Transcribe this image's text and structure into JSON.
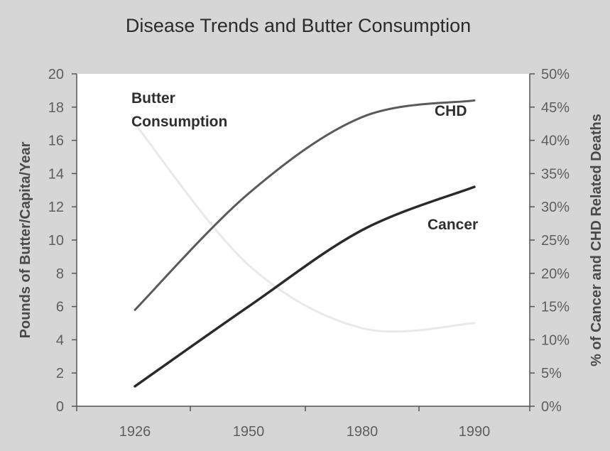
{
  "chart_data": {
    "type": "line",
    "title": "Disease Trends and Butter Consumption",
    "ylabel": "Pounds of Butter/Capita/Year",
    "y2label": "% of Cancer and CHD Related Deaths",
    "ylim": [
      0,
      20
    ],
    "y2lim": [
      0,
      50
    ],
    "yticks": [
      "0",
      "2",
      "4",
      "6",
      "8",
      "10",
      "12",
      "14",
      "16",
      "18",
      "20"
    ],
    "y2ticks": [
      "0%",
      "5%",
      "10%",
      "15%",
      "20%",
      "25%",
      "30%",
      "35%",
      "40%",
      "45%",
      "50%"
    ],
    "xticks": [
      "1926",
      "1950",
      "1980",
      "1990"
    ],
    "grid": false,
    "series": [
      {
        "name": "Butter Consumption",
        "axis": "left",
        "color": "#e9e9e9",
        "x": [
          "1926",
          "1950",
          "1980",
          "1990"
        ],
        "values": [
          17.0,
          8.5,
          4.7,
          5.0
        ]
      },
      {
        "name": "CHD",
        "axis": "right",
        "color": "#5a5a5a",
        "x": [
          "1926",
          "1950",
          "1980",
          "1990"
        ],
        "values": [
          14.5,
          32.0,
          43.5,
          46.0
        ]
      },
      {
        "name": "Cancer",
        "axis": "right",
        "color": "#2a2a2a",
        "x": [
          "1926",
          "1950",
          "1980",
          "1990"
        ],
        "values": [
          3.0,
          15.0,
          26.5,
          33.0
        ]
      }
    ],
    "series_labels": {
      "butter_line1": "Butter",
      "butter_line2": "Consumption",
      "chd": "CHD",
      "cancer": "Cancer"
    }
  }
}
